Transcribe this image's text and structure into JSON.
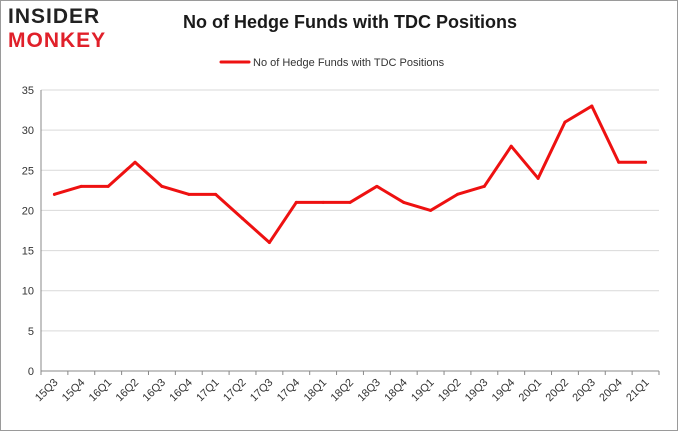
{
  "brand": {
    "line1": "INSIDER",
    "line2": "MONKEY"
  },
  "colors": {
    "series": "#ee1111",
    "grid": "#d9d9d9",
    "axis": "#888888",
    "brand_dark": "#222222",
    "brand_red": "#e0202a"
  },
  "chart_data": {
    "type": "line",
    "title": "No of Hedge Funds with TDC Positions",
    "xlabel": "",
    "ylabel": "",
    "ylim": [
      0,
      35
    ],
    "yticks": [
      0,
      5,
      10,
      15,
      20,
      25,
      30,
      35
    ],
    "grid": "horizontal",
    "legend": "top-center",
    "categories": [
      "15Q3",
      "15Q4",
      "16Q1",
      "16Q2",
      "16Q3",
      "16Q4",
      "17Q1",
      "17Q2",
      "17Q3",
      "17Q4",
      "18Q1",
      "18Q2",
      "18Q3",
      "18Q4",
      "19Q1",
      "19Q2",
      "19Q3",
      "19Q4",
      "20Q1",
      "20Q2",
      "20Q3",
      "20Q4",
      "21Q1"
    ],
    "series": [
      {
        "name": "No of Hedge Funds with TDC Positions",
        "values": [
          22,
          23,
          23,
          26,
          23,
          22,
          22,
          19,
          16,
          21,
          21,
          21,
          23,
          21,
          20,
          22,
          23,
          28,
          24,
          31,
          33,
          26,
          26
        ]
      }
    ]
  }
}
